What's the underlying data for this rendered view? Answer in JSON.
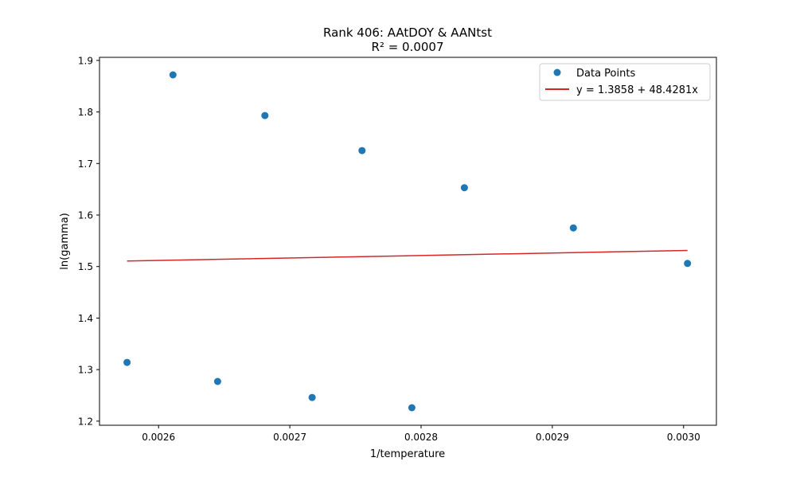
{
  "chart_data": {
    "type": "scatter",
    "title": "Rank 406: AAtDOY & AANtst",
    "subtitle": "R² = 0.0007",
    "xlabel": "1/temperature",
    "ylabel": "ln(gamma)",
    "xlim": [
      0.002555,
      0.003025
    ],
    "ylim": [
      1.192,
      1.906
    ],
    "xticks": [
      0.0026,
      0.0027,
      0.0028,
      0.0029,
      0.003
    ],
    "xtick_labels": [
      "0.0026",
      "0.0027",
      "0.0028",
      "0.0029",
      "0.0030"
    ],
    "yticks": [
      1.2,
      1.3,
      1.4,
      1.5,
      1.6,
      1.7,
      1.8,
      1.9
    ],
    "ytick_labels": [
      "1.2",
      "1.3",
      "1.4",
      "1.5",
      "1.6",
      "1.7",
      "1.8",
      "1.9"
    ],
    "grid": false,
    "legend_position": "top-right",
    "series": [
      {
        "name": "Data Points",
        "kind": "scatter",
        "color": "#1f77b4",
        "x": [
          0.002576,
          0.002611,
          0.002645,
          0.002681,
          0.002717,
          0.002755,
          0.002793,
          0.002833,
          0.002916,
          0.003003
        ],
        "y": [
          1.314,
          1.872,
          1.277,
          1.793,
          1.246,
          1.725,
          1.226,
          1.653,
          1.575,
          1.506
        ]
      },
      {
        "name": "y = 1.3858 + 48.4281x",
        "kind": "line",
        "color": "#d62728",
        "x": [
          0.002576,
          0.003003
        ],
        "y": [
          1.5106,
          1.5312
        ]
      }
    ]
  }
}
